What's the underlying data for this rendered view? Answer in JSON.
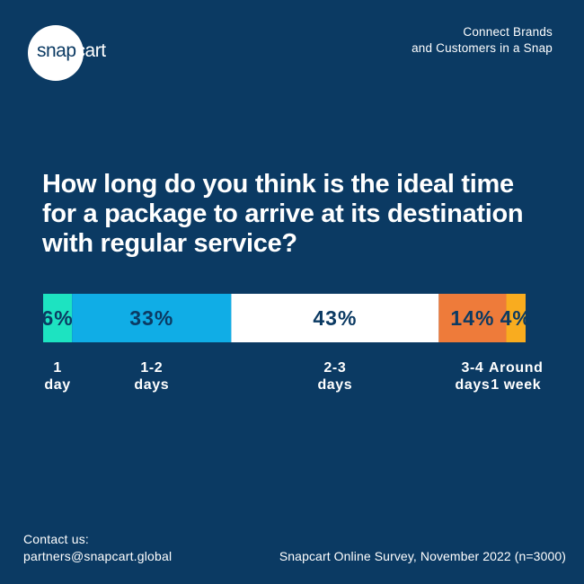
{
  "brand": {
    "logo_part_a": "snap",
    "logo_part_b": "cart",
    "tagline_line1": "Connect Brands",
    "tagline_line2": "and Customers in a Snap"
  },
  "question": {
    "line1": "How long do you think is the ideal time",
    "line2": "for a package to arrive at its destination",
    "line3": "with regular service?"
  },
  "chart_data": {
    "type": "bar",
    "orientation": "horizontal-stacked-100",
    "categories": [
      [
        "1",
        "day"
      ],
      [
        "1-2",
        "days"
      ],
      [
        "2-3",
        "days"
      ],
      [
        "3-4",
        "days"
      ],
      [
        "Around",
        "1 week"
      ]
    ],
    "values": [
      6,
      33,
      43,
      14,
      4
    ],
    "labels": [
      "6%",
      "33%",
      "43%",
      "14%",
      "4%"
    ],
    "colors": [
      "#1de3c1",
      "#10ade6",
      "#ffffff",
      "#ee7b3a",
      "#f9ac1f"
    ],
    "label_color": "#0b3a63",
    "unit": "%"
  },
  "footer": {
    "contact_label": "Contact us:",
    "contact_email": "partners@snapcart.global",
    "source": "Snapcart Online Survey, November 2022 (n=3000)"
  },
  "theme": {
    "background": "#0b3a63",
    "text": "#ffffff"
  }
}
